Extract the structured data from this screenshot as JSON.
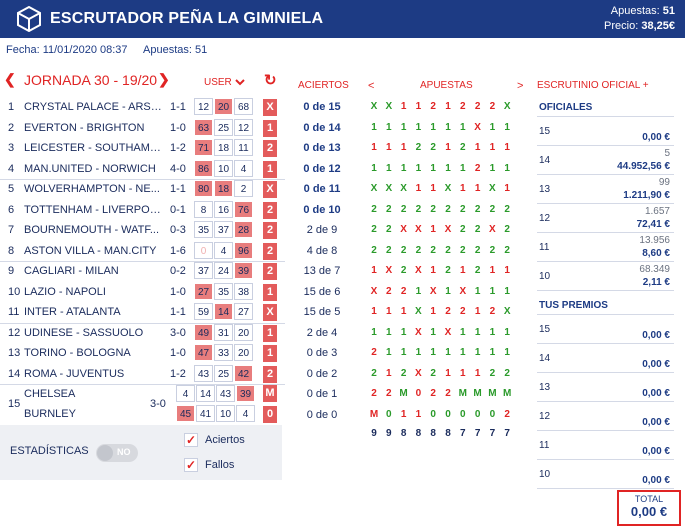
{
  "header": {
    "title": "ESCRUTADOR PEÑA LA GIMNIELA",
    "apuestas_label": "Apuestas:",
    "apuestas_value": "51",
    "precio_label": "Precio:",
    "precio_value": "38,25€"
  },
  "meta": {
    "fecha_label": "Fecha:",
    "fecha_value": "11/01/2020 08:37",
    "apuestas_label": "Apuestas:",
    "apuestas_value": "51"
  },
  "jornada": {
    "prev": "❮",
    "next": "❯",
    "title": "JORNADA 30 - 19/20",
    "user_label": "USER",
    "refresh": "↻"
  },
  "columns": {
    "aciertos": "ACIERTOS",
    "apuestas": "APUESTAS",
    "escrutinio": "ESCRUTINIO OFICIAL +",
    "apu_prev": "<",
    "apu_next": ">"
  },
  "matches": [
    {
      "num": "1",
      "name": "CRYSTAL PALACE - ARSE...",
      "score": "1-1",
      "p1": "12",
      "px": "20",
      "p2": "68",
      "hi": "x",
      "res": "X"
    },
    {
      "num": "2",
      "name": "EVERTON - BRIGHTON",
      "score": "1-0",
      "p1": "63",
      "px": "25",
      "p2": "12",
      "hi": "1",
      "res": "1"
    },
    {
      "num": "3",
      "name": "LEICESTER - SOUTHAMP...",
      "score": "1-2",
      "p1": "71",
      "px": "18",
      "p2": "11",
      "hi": "1",
      "res": "2"
    },
    {
      "num": "4",
      "name": "MAN.UNITED - NORWICH",
      "score": "4-0",
      "p1": "86",
      "px": "10",
      "p2": "4",
      "hi": "1",
      "res": "1"
    },
    {
      "num": "5",
      "name": "WOLVERHAMPTON - NE...",
      "score": "1-1",
      "p1": "80",
      "px": "18",
      "p2": "2",
      "hi": "1x",
      "res": "X"
    },
    {
      "num": "6",
      "name": "TOTTENHAM - LIVERPOOL",
      "score": "0-1",
      "p1": "8",
      "px": "16",
      "p2": "76",
      "hi": "2",
      "res": "2"
    },
    {
      "num": "7",
      "name": "BOURNEMOUTH - WATF...",
      "score": "0-3",
      "p1": "35",
      "px": "37",
      "p2": "28",
      "hi": "2",
      "res": "2"
    },
    {
      "num": "8",
      "name": "ASTON VILLA - MAN.CITY",
      "score": "1-6",
      "p1": "0",
      "px": "4",
      "p2": "96",
      "hi": "2f",
      "res": "2"
    },
    {
      "num": "9",
      "name": "CAGLIARI - MILAN",
      "score": "0-2",
      "p1": "37",
      "px": "24",
      "p2": "39",
      "hi": "2",
      "res": "2"
    },
    {
      "num": "10",
      "name": "LAZIO - NAPOLI",
      "score": "1-0",
      "p1": "27",
      "px": "35",
      "p2": "38",
      "hi": "1",
      "res": "1"
    },
    {
      "num": "11",
      "name": "INTER - ATALANTA",
      "score": "1-1",
      "p1": "59",
      "px": "14",
      "p2": "27",
      "hi": "x",
      "res": "X"
    },
    {
      "num": "12",
      "name": "UDINESE - SASSUOLO",
      "score": "3-0",
      "p1": "49",
      "px": "31",
      "p2": "20",
      "hi": "1",
      "res": "1"
    },
    {
      "num": "13",
      "name": "TORINO - BOLOGNA",
      "score": "1-0",
      "p1": "47",
      "px": "33",
      "p2": "20",
      "hi": "1",
      "res": "1"
    },
    {
      "num": "14",
      "name": "ROMA - JUVENTUS",
      "score": "1-2",
      "p1": "43",
      "px": "25",
      "p2": "42",
      "hi": "2",
      "res": "2"
    }
  ],
  "pleno": {
    "num": "15",
    "home": "CHELSEA",
    "away": "BURNLEY",
    "score": "3-0",
    "row1": [
      "4",
      "14",
      "43",
      "39"
    ],
    "row2": [
      "45",
      "41",
      "10",
      "4"
    ],
    "res1": "M",
    "res2": "0"
  },
  "aciertos": [
    "0 de 15",
    "0 de 14",
    "0 de 13",
    "0 de 12",
    "0 de 11",
    "0 de 10",
    "2 de 9",
    "4 de 8",
    "13 de 7",
    "15 de 6",
    "15 de 5",
    "2 de 4",
    "0 de 3",
    "0 de 2",
    "0 de 1",
    "0 de 0"
  ],
  "apuestas_grid": [
    [
      "X",
      "X",
      "1",
      "1",
      "2",
      "1",
      "2",
      "2",
      "2",
      "X"
    ],
    [
      "1",
      "1",
      "1",
      "1",
      "1",
      "1",
      "1",
      "X",
      "1",
      "1"
    ],
    [
      "1",
      "1",
      "1",
      "2",
      "2",
      "1",
      "2",
      "1",
      "1",
      "1"
    ],
    [
      "1",
      "1",
      "1",
      "1",
      "1",
      "1",
      "1",
      "2",
      "1",
      "1"
    ],
    [
      "X",
      "X",
      "X",
      "1",
      "1",
      "X",
      "1",
      "1",
      "X",
      "1"
    ],
    [
      "2",
      "2",
      "2",
      "2",
      "2",
      "2",
      "2",
      "2",
      "2",
      "2"
    ],
    [
      "2",
      "2",
      "X",
      "X",
      "1",
      "X",
      "2",
      "2",
      "X",
      "2"
    ],
    [
      "2",
      "2",
      "2",
      "2",
      "2",
      "2",
      "2",
      "2",
      "2",
      "2"
    ],
    [
      "1",
      "X",
      "2",
      "X",
      "1",
      "2",
      "1",
      "2",
      "1",
      "1"
    ],
    [
      "X",
      "2",
      "2",
      "1",
      "X",
      "1",
      "X",
      "1",
      "1",
      "1"
    ],
    [
      "1",
      "1",
      "1",
      "X",
      "1",
      "2",
      "2",
      "1",
      "2",
      "X"
    ],
    [
      "1",
      "1",
      "1",
      "X",
      "1",
      "X",
      "1",
      "1",
      "1",
      "1"
    ],
    [
      "2",
      "1",
      "1",
      "1",
      "1",
      "1",
      "1",
      "1",
      "1",
      "1"
    ],
    [
      "2",
      "1",
      "2",
      "X",
      "2",
      "1",
      "1",
      "1",
      "2",
      "2"
    ],
    [
      "2",
      "2",
      "M",
      "0",
      "2",
      "2",
      "M",
      "M",
      "M",
      "M"
    ],
    [
      "M",
      "0",
      "1",
      "1",
      "0",
      "0",
      "0",
      "0",
      "0",
      "2"
    ]
  ],
  "apuestas_totals": [
    "9",
    "9",
    "8",
    "8",
    "8",
    "8",
    "7",
    "7",
    "7",
    "7"
  ],
  "escrutinio": {
    "oficiales_label": "OFICIALES",
    "oficiales": [
      {
        "label": "15",
        "count": "",
        "amount": "0,00 €"
      },
      {
        "label": "14",
        "count": "5",
        "amount": "44.952,56 €"
      },
      {
        "label": "13",
        "count": "99",
        "amount": "1.211,90 €"
      },
      {
        "label": "12",
        "count": "1.657",
        "amount": "72,41 €"
      },
      {
        "label": "11",
        "count": "13.956",
        "amount": "8,60 €"
      },
      {
        "label": "10",
        "count": "68.349",
        "amount": "2,11 €"
      }
    ],
    "premios_label": "TUS PREMIOS",
    "premios": [
      {
        "label": "15",
        "amount": "0,00 €"
      },
      {
        "label": "14",
        "amount": "0,00 €"
      },
      {
        "label": "13",
        "amount": "0,00 €"
      },
      {
        "label": "12",
        "amount": "0,00 €"
      },
      {
        "label": "11",
        "amount": "0,00 €"
      },
      {
        "label": "10",
        "amount": "0,00 €"
      }
    ]
  },
  "stats": {
    "label": "ESTADÍSTICAS",
    "toggle": "NO",
    "aciertos": "Aciertos",
    "fallos": "Fallos",
    "check": "✓"
  },
  "total": {
    "label": "TOTAL",
    "value": "0,00 €"
  },
  "colors": {
    "header_bg": "#1d3b84",
    "accent_red": "#e02424",
    "green": "#2a9a2a",
    "highlight": "#e87d7d"
  },
  "icons": {
    "logo": "cube-logo-icon",
    "chevron": "chevron-down-icon",
    "refresh": "refresh-icon"
  }
}
